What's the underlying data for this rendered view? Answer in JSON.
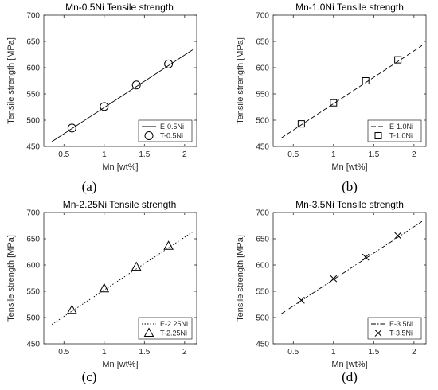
{
  "chart_data": [
    {
      "type": "scatter",
      "title": "Mn-0.5Ni Tensile strength",
      "xlabel": "Mn [wt%]",
      "ylabel": "Tensile strength [MPa]",
      "xlim": [
        0.25,
        2.15
      ],
      "ylim": [
        450,
        700
      ],
      "xticks": [
        "0.5",
        "1",
        "1.5",
        "2"
      ],
      "yticks": [
        "450",
        "500",
        "550",
        "600",
        "650",
        "700"
      ],
      "caption": "(a)",
      "legend_position": "bottom-right",
      "line_style": "solid",
      "marker": "circle",
      "series": [
        {
          "name": "E-0.5Ni",
          "kind": "line",
          "x": [
            0.35,
            2.1
          ],
          "y": [
            459,
            634
          ]
        },
        {
          "name": "T-0.5Ni",
          "kind": "markers",
          "x": [
            0.6,
            1.0,
            1.4,
            1.8
          ],
          "y": [
            485,
            526,
            567,
            607
          ]
        }
      ]
    },
    {
      "type": "scatter",
      "title": "Mn-1.0Ni Tensile strength",
      "xlabel": "Mn [wt%]",
      "ylabel": "Tensile strength [MPa]",
      "xlim": [
        0.25,
        2.15
      ],
      "ylim": [
        450,
        700
      ],
      "xticks": [
        "0.5",
        "1",
        "1.5",
        "2"
      ],
      "yticks": [
        "450",
        "500",
        "550",
        "600",
        "650",
        "700"
      ],
      "caption": "(b)",
      "legend_position": "bottom-right",
      "line_style": "dashed",
      "marker": "square",
      "series": [
        {
          "name": "E-1.0Ni",
          "kind": "line",
          "x": [
            0.35,
            2.1
          ],
          "y": [
            466,
            642
          ]
        },
        {
          "name": "T-1.0Ni",
          "kind": "markers",
          "x": [
            0.6,
            1.0,
            1.4,
            1.8
          ],
          "y": [
            493,
            533,
            575,
            615
          ]
        }
      ]
    },
    {
      "type": "scatter",
      "title": "Mn-2.25Ni Tensile strength",
      "xlabel": "Mn [wt%]",
      "ylabel": "Tensile strength [MPa]",
      "xlim": [
        0.25,
        2.15
      ],
      "ylim": [
        450,
        700
      ],
      "xticks": [
        "0.5",
        "1",
        "1.5",
        "2"
      ],
      "yticks": [
        "450",
        "500",
        "550",
        "600",
        "650",
        "700"
      ],
      "caption": "(c)",
      "legend_position": "bottom-right",
      "line_style": "dotted",
      "marker": "triangle",
      "series": [
        {
          "name": "E-2.25Ni",
          "kind": "line",
          "x": [
            0.35,
            2.1
          ],
          "y": [
            487,
            663
          ]
        },
        {
          "name": "T-2.25Ni",
          "kind": "markers",
          "x": [
            0.6,
            1.0,
            1.4,
            1.8
          ],
          "y": [
            514,
            555,
            596,
            636
          ]
        }
      ]
    },
    {
      "type": "scatter",
      "title": "Mn-3.5Ni Tensile strength",
      "xlabel": "Mn [wt%]",
      "ylabel": "Tensile strength [MPa]",
      "xlim": [
        0.25,
        2.15
      ],
      "ylim": [
        450,
        700
      ],
      "xticks": [
        "0.5",
        "1",
        "1.5",
        "2"
      ],
      "yticks": [
        "450",
        "500",
        "550",
        "600",
        "650",
        "700"
      ],
      "caption": "(d)",
      "legend_position": "bottom-right",
      "line_style": "dash-dot",
      "marker": "x",
      "series": [
        {
          "name": "E-3.5Ni",
          "kind": "line",
          "x": [
            0.35,
            2.1
          ],
          "y": [
            507,
            683
          ]
        },
        {
          "name": "T-3.5Ni",
          "kind": "markers",
          "x": [
            0.6,
            1.0,
            1.4,
            1.8
          ],
          "y": [
            533,
            574,
            615,
            656
          ]
        }
      ]
    }
  ]
}
